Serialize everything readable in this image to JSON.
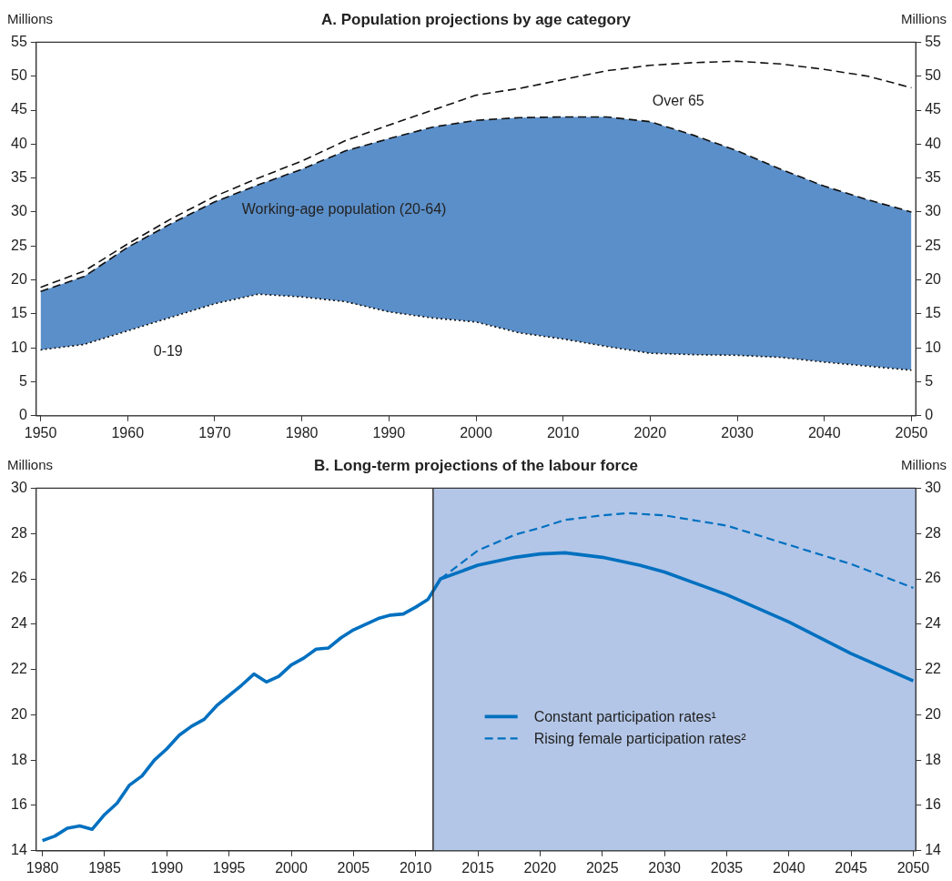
{
  "chart_data": [
    {
      "type": "area",
      "title": "A. Population projections by age category",
      "ylabel": "Millions",
      "y2label": "Millions",
      "stacked": true,
      "x": [
        1950,
        1955,
        1960,
        1965,
        1970,
        1975,
        1980,
        1985,
        1990,
        1995,
        2000,
        2005,
        2010,
        2015,
        2020,
        2025,
        2030,
        2035,
        2040,
        2045,
        2050
      ],
      "series": [
        {
          "color": "#ffffff",
          "line_style": "dotted",
          "values": [
            9.7,
            10.5,
            12.5,
            14.5,
            16.5,
            17.9,
            17.5,
            16.8,
            15.3,
            14.4,
            13.8,
            12.2,
            11.3,
            10.2,
            9.2,
            9.0,
            8.9,
            8.6,
            7.9,
            7.3,
            6.7
          ]
        },
        {
          "color": "#5b8fc9",
          "line_style": "dashed",
          "values": [
            8.6,
            10.0,
            12.3,
            13.8,
            15.0,
            16.1,
            18.8,
            22.2,
            25.5,
            28.1,
            29.7,
            31.7,
            32.7,
            33.8,
            34.1,
            32.3,
            30.1,
            27.7,
            25.9,
            24.5,
            23.3
          ]
        },
        {
          "color": "#ffffff",
          "line_style": "dashed",
          "values": [
            0.6,
            0.8,
            0.5,
            0.7,
            0.8,
            1.0,
            1.2,
            1.5,
            2.0,
            2.5,
            3.7,
            4.3,
            5.5,
            6.8,
            8.3,
            10.7,
            13.2,
            15.5,
            17.2,
            18.2,
            18.3
          ]
        }
      ],
      "annotations": [
        "Working-age population (20-64)",
        "0-19",
        "Over 65"
      ],
      "xlim": [
        1949.5,
        2050.5
      ],
      "xticks": [
        1950,
        1960,
        1970,
        1980,
        1990,
        2000,
        2010,
        2020,
        2030,
        2040,
        2050
      ],
      "ylim": [
        0,
        55
      ],
      "yticks": [
        0,
        5,
        10,
        15,
        20,
        25,
        30,
        35,
        40,
        45,
        50,
        55
      ],
      "y2lim": [
        0,
        55
      ],
      "y2ticks": [
        0,
        5,
        10,
        15,
        20,
        25,
        30,
        35,
        40,
        45,
        50,
        55
      ]
    },
    {
      "type": "line",
      "title": "B. Long-term projections of the labour force",
      "ylabel": "Millions",
      "y2label": "Millions",
      "legend": "right",
      "series": [
        {
          "name": "Constant participation rates¹",
          "color": "#0070c0",
          "line_style": "solid",
          "x": [
            1980,
            1981,
            1982,
            1983,
            1984,
            1985,
            1986,
            1987,
            1988,
            1989,
            1990,
            1991,
            1992,
            1993,
            1994,
            1995,
            1996,
            1997,
            1998,
            1999,
            2000,
            2001,
            2002,
            2003,
            2004,
            2005,
            2006,
            2007,
            2008,
            2009,
            2010,
            2011,
            2012,
            2015,
            2018,
            2020,
            2022,
            2025,
            2028,
            2030,
            2035,
            2040,
            2045,
            2050
          ],
          "values": [
            14.45,
            14.65,
            15.0,
            15.1,
            14.95,
            15.6,
            16.1,
            16.9,
            17.3,
            18.0,
            18.5,
            19.1,
            19.5,
            19.8,
            20.4,
            20.85,
            21.3,
            21.8,
            21.45,
            21.7,
            22.2,
            22.5,
            22.9,
            22.95,
            23.4,
            23.75,
            24.0,
            24.25,
            24.4,
            24.45,
            24.75,
            25.1,
            26.0,
            26.6,
            26.95,
            27.1,
            27.15,
            26.95,
            26.6,
            26.3,
            25.3,
            24.1,
            22.7,
            21.5
          ]
        },
        {
          "name": "Rising female participation rates²",
          "color": "#0070c0",
          "line_style": "dashed",
          "x": [
            2012,
            2015,
            2018,
            2020,
            2022,
            2025,
            2027,
            2030,
            2035,
            2040,
            2045,
            2050
          ],
          "values": [
            26.0,
            27.25,
            27.95,
            28.25,
            28.6,
            28.8,
            28.9,
            28.8,
            28.35,
            27.5,
            26.65,
            25.6
          ]
        }
      ],
      "bands": [
        {
          "axis": "x",
          "from": 2011.4,
          "to": 2050.2,
          "color": "#b3c6e7"
        }
      ],
      "ref_lines": [
        {
          "axis": "x",
          "value": 2011.4,
          "color": "#333333"
        }
      ],
      "xlim": [
        1979.5,
        2050.2
      ],
      "xticks": [
        1980,
        1985,
        1990,
        1995,
        2000,
        2005,
        2010,
        2015,
        2020,
        2025,
        2030,
        2035,
        2040,
        2045,
        2050
      ],
      "ylim": [
        14,
        30
      ],
      "yticks": [
        14,
        16,
        18,
        20,
        22,
        24,
        26,
        28,
        30
      ],
      "y2lim": [
        14,
        30
      ],
      "y2ticks": [
        14,
        16,
        18,
        20,
        22,
        24,
        26,
        28,
        30
      ]
    }
  ]
}
